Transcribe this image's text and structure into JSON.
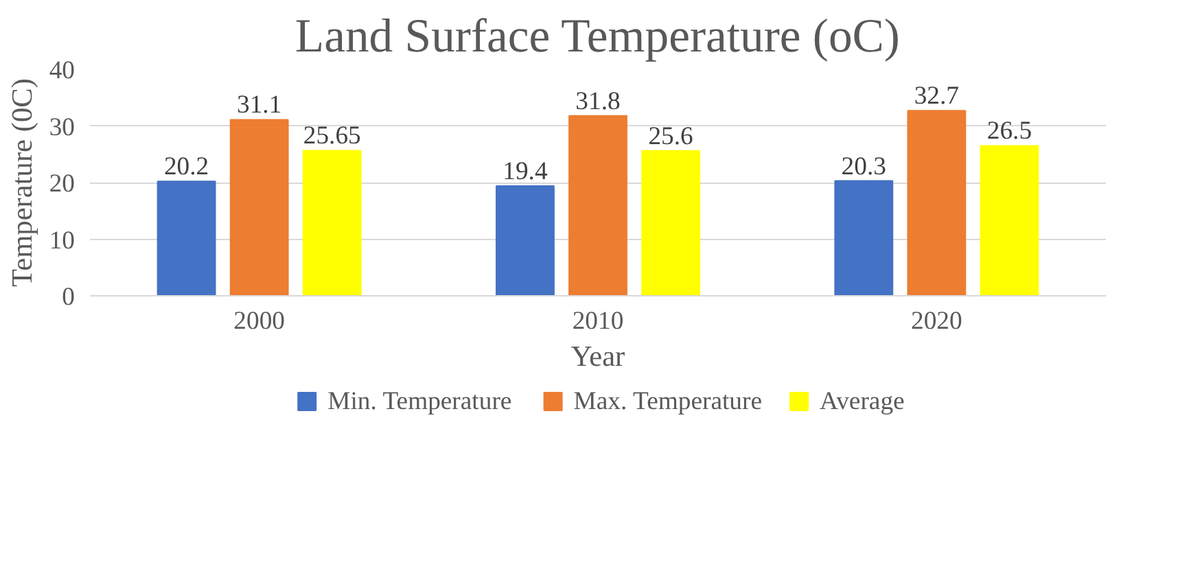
{
  "chart_data": {
    "type": "bar",
    "title": "Land Surface Temperature (oC)",
    "xlabel": "Year",
    "ylabel": "Temperature (0C)",
    "categories": [
      "2000",
      "2010",
      "2020"
    ],
    "series": [
      {
        "name": "Min. Temperature",
        "color": "#4472c4",
        "values": [
          20.2,
          19.4,
          20.3
        ]
      },
      {
        "name": "Max. Temperature",
        "color": "#ed7d31",
        "values": [
          31.1,
          31.8,
          32.7
        ]
      },
      {
        "name": "Average",
        "color": "#ffff00",
        "values": [
          25.65,
          25.6,
          26.5
        ]
      }
    ],
    "ylim": [
      0,
      40
    ],
    "yticks": [
      0,
      10,
      20,
      30,
      40
    ],
    "grid": "y",
    "legend": "bottom",
    "data_labels": true
  }
}
